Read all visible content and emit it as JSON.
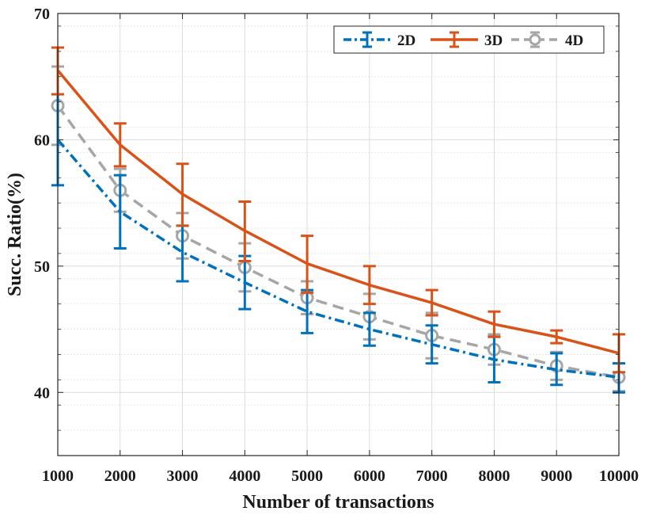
{
  "chart_data": {
    "type": "line",
    "title": "",
    "xlabel": "Number of transactions",
    "ylabel": "Succ. Ratio(%)",
    "x": [
      1000,
      2000,
      3000,
      4000,
      5000,
      6000,
      7000,
      8000,
      9000,
      10000
    ],
    "x_tick_labels": [
      "1000",
      "2000",
      "3000",
      "4000",
      "5000",
      "6000",
      "7000",
      "8000",
      "9000",
      "10000"
    ],
    "xlim": [
      1000,
      10000
    ],
    "ylim": [
      35,
      70
    ],
    "y_ticks": [
      40,
      50,
      60,
      70
    ],
    "y_tick_labels": [
      "40",
      "50",
      "60",
      "70"
    ],
    "y_minor_step": 2,
    "grid": true,
    "legend_position": "top-right",
    "series": [
      {
        "name": "2D",
        "color": "#0072bd",
        "style": "dash-dot",
        "marker": "none",
        "values": [
          60.0,
          54.3,
          51.1,
          48.7,
          46.4,
          45.0,
          43.8,
          42.6,
          41.8,
          41.2
        ],
        "err_low": [
          56.4,
          51.4,
          48.8,
          46.6,
          44.7,
          43.7,
          42.3,
          40.8,
          40.6,
          40.0
        ],
        "err_high": [
          63.6,
          57.2,
          53.2,
          50.8,
          48.1,
          46.3,
          45.3,
          44.4,
          43.1,
          42.3
        ]
      },
      {
        "name": "3D",
        "color": "#d95319",
        "style": "solid",
        "marker": "none",
        "values": [
          65.5,
          59.6,
          55.7,
          52.8,
          50.2,
          48.5,
          47.1,
          45.4,
          44.4,
          43.1
        ],
        "err_low": [
          63.6,
          57.9,
          53.2,
          50.4,
          47.9,
          47.0,
          46.1,
          44.4,
          43.9,
          41.6
        ],
        "err_high": [
          67.3,
          61.3,
          58.1,
          55.1,
          52.4,
          50.0,
          48.1,
          46.4,
          44.9,
          44.6
        ]
      },
      {
        "name": "4D",
        "color": "#a6a6a6",
        "style": "dashed",
        "marker": "circle",
        "values": [
          62.7,
          56.0,
          52.4,
          49.9,
          47.5,
          46.0,
          44.5,
          43.4,
          42.1,
          41.2
        ],
        "err_low": [
          59.6,
          54.3,
          50.6,
          48.0,
          46.2,
          44.2,
          42.7,
          42.2,
          41.0,
          40.1
        ],
        "err_high": [
          65.8,
          57.7,
          54.2,
          51.8,
          48.8,
          47.8,
          46.3,
          44.6,
          43.2,
          42.3
        ]
      }
    ]
  }
}
